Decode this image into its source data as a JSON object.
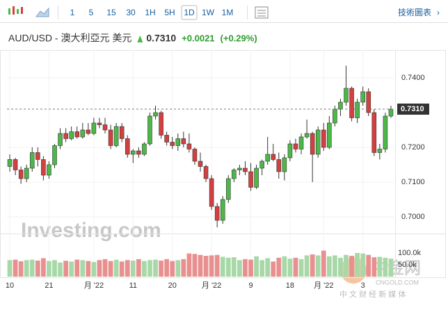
{
  "toolbar": {
    "intervals": [
      "1",
      "5",
      "15",
      "30",
      "1H",
      "5H",
      "1D",
      "1W",
      "1M"
    ],
    "selected": 6,
    "chart_link": "技術圖表"
  },
  "watermarks": {
    "brand": "Investing.com",
    "cn_logo": "中金网",
    "cn_site": "CNGOLD.COM",
    "cn_tag": "中 文 财 经 新 媒 体"
  },
  "chart_data": {
    "type": "candlestick",
    "title": "AUD/USD - 澳大利亞元 美元",
    "price": "0.7310",
    "change": "+0.0021",
    "change_pct": "(+0.29%)",
    "categories": [
      "10",
      null,
      null,
      null,
      null,
      null,
      null,
      "21",
      null,
      null,
      null,
      null,
      null,
      null,
      null,
      "月 '22",
      null,
      null,
      null,
      null,
      null,
      null,
      "11",
      null,
      null,
      null,
      null,
      null,
      null,
      "20",
      null,
      null,
      null,
      null,
      null,
      null,
      "月 '22",
      null,
      null,
      null,
      null,
      null,
      null,
      "9",
      null,
      null,
      null,
      null,
      null,
      null,
      "18",
      null,
      null,
      null,
      null,
      null,
      "月 '22",
      null,
      null,
      null,
      null,
      null,
      null,
      "3",
      null,
      null,
      null,
      null,
      null
    ],
    "open": [
      0.7145,
      0.7165,
      0.7135,
      0.711,
      0.714,
      0.7185,
      0.7165,
      0.712,
      0.715,
      0.7205,
      0.724,
      0.7225,
      0.7245,
      0.723,
      0.725,
      0.724,
      0.727,
      0.7265,
      0.725,
      0.7205,
      0.726,
      0.7225,
      0.718,
      0.719,
      0.718,
      0.721,
      0.729,
      0.73,
      0.7235,
      0.7215,
      0.7205,
      0.7225,
      0.721,
      0.7195,
      0.716,
      0.7145,
      0.711,
      0.703,
      0.699,
      0.705,
      0.711,
      0.7135,
      0.714,
      0.713,
      0.7085,
      0.714,
      0.716,
      0.718,
      0.7165,
      0.713,
      0.717,
      0.721,
      0.7195,
      0.723,
      0.724,
      0.718,
      0.725,
      0.72,
      0.727,
      0.731,
      0.733,
      0.737,
      0.7285,
      0.733,
      0.736,
      0.73,
      0.7185,
      0.7195,
      0.729
    ],
    "high": [
      0.718,
      0.717,
      0.7145,
      0.715,
      0.72,
      0.72,
      0.7175,
      0.716,
      0.721,
      0.7255,
      0.7255,
      0.726,
      0.726,
      0.727,
      0.727,
      0.7285,
      0.7285,
      0.7285,
      0.7265,
      0.727,
      0.727,
      0.7235,
      0.7195,
      0.72,
      0.7215,
      0.73,
      0.732,
      0.7305,
      0.7245,
      0.723,
      0.724,
      0.7245,
      0.724,
      0.72,
      0.7185,
      0.715,
      0.712,
      0.704,
      0.706,
      0.712,
      0.714,
      0.715,
      0.716,
      0.7155,
      0.715,
      0.7165,
      0.723,
      0.721,
      0.7185,
      0.718,
      0.722,
      0.7225,
      0.724,
      0.728,
      0.7245,
      0.726,
      0.727,
      0.729,
      0.732,
      0.734,
      0.7435,
      0.7375,
      0.734,
      0.7375,
      0.737,
      0.731,
      0.721,
      0.73,
      0.732
    ],
    "low": [
      0.713,
      0.712,
      0.7095,
      0.71,
      0.713,
      0.7145,
      0.7105,
      0.711,
      0.714,
      0.7195,
      0.7215,
      0.722,
      0.7225,
      0.7225,
      0.7235,
      0.7235,
      0.7255,
      0.724,
      0.7195,
      0.72,
      0.7215,
      0.717,
      0.7155,
      0.717,
      0.7175,
      0.7205,
      0.728,
      0.7225,
      0.7205,
      0.7195,
      0.719,
      0.72,
      0.7185,
      0.715,
      0.713,
      0.71,
      0.702,
      0.697,
      0.698,
      0.704,
      0.71,
      0.712,
      0.712,
      0.7075,
      0.708,
      0.712,
      0.715,
      0.716,
      0.711,
      0.7105,
      0.716,
      0.7185,
      0.718,
      0.7225,
      0.71,
      0.717,
      0.719,
      0.7195,
      0.726,
      0.729,
      0.732,
      0.7275,
      0.727,
      0.732,
      0.729,
      0.7175,
      0.7165,
      0.7185,
      0.7285
    ],
    "close": [
      0.7165,
      0.7135,
      0.711,
      0.714,
      0.7185,
      0.7165,
      0.712,
      0.715,
      0.7205,
      0.724,
      0.7225,
      0.7245,
      0.723,
      0.725,
      0.724,
      0.727,
      0.7265,
      0.725,
      0.7205,
      0.726,
      0.7225,
      0.718,
      0.719,
      0.718,
      0.721,
      0.729,
      0.73,
      0.7235,
      0.7215,
      0.7205,
      0.7225,
      0.721,
      0.7195,
      0.716,
      0.7145,
      0.711,
      0.703,
      0.699,
      0.705,
      0.711,
      0.7135,
      0.714,
      0.713,
      0.7085,
      0.714,
      0.716,
      0.718,
      0.7165,
      0.713,
      0.717,
      0.721,
      0.7195,
      0.723,
      0.724,
      0.718,
      0.725,
      0.72,
      0.727,
      0.731,
      0.733,
      0.737,
      0.7285,
      0.733,
      0.736,
      0.73,
      0.7185,
      0.7195,
      0.729,
      0.731
    ],
    "volume": [
      70000,
      72000,
      65000,
      70000,
      72000,
      68000,
      78000,
      66000,
      70000,
      60000,
      67000,
      64000,
      72000,
      70000,
      66000,
      62000,
      70000,
      74000,
      66000,
      72000,
      64000,
      70000,
      68000,
      74000,
      66000,
      70000,
      72000,
      68000,
      74000,
      66000,
      70000,
      74000,
      98000,
      96000,
      92000,
      88000,
      90000,
      92000,
      84000,
      80000,
      82000,
      70000,
      74000,
      72000,
      86000,
      70000,
      78000,
      64000,
      80000,
      86000,
      76000,
      80000,
      74000,
      90000,
      94000,
      90000,
      110000,
      86000,
      90000,
      80000,
      92000,
      88000,
      100000,
      98000,
      92000,
      82000,
      84000,
      80000,
      76000
    ],
    "up_color": "#4cb848",
    "down_color": "#d43f3f",
    "vol_up_color": "#a8d8a8",
    "vol_down_color": "#e89090",
    "ylim": [
      0.6964,
      0.7464
    ],
    "yticks": [
      {
        "value": 0.7,
        "label": "0.7000"
      },
      {
        "value": 0.71,
        "label": "0.7100"
      },
      {
        "value": 0.72,
        "label": "0.7200"
      },
      {
        "value": 0.74,
        "label": "0.7400"
      }
    ],
    "last": {
      "value": 0.731,
      "label": "0.7310"
    },
    "y2lim": [
      0,
      170600
    ],
    "y2ticks": [
      {
        "value": 50000,
        "label": "50.0k"
      },
      {
        "value": 100000,
        "label": "100.0k"
      }
    ]
  }
}
